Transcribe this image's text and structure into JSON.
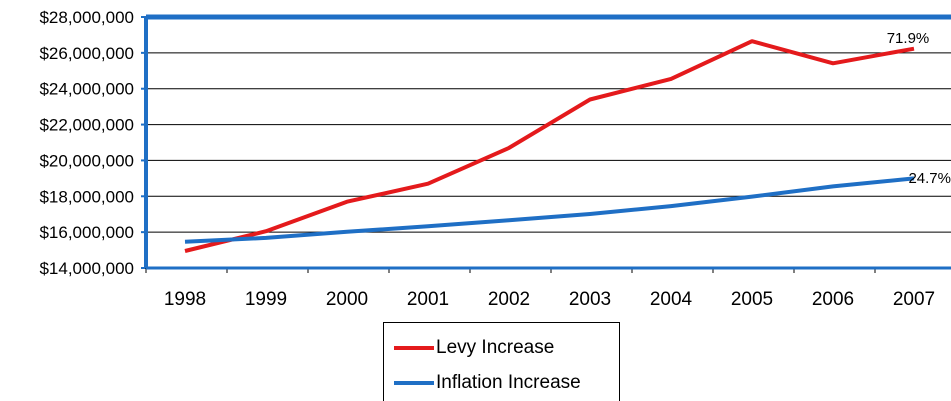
{
  "chart_data": {
    "type": "line",
    "categories": [
      "1998",
      "1999",
      "2000",
      "2001",
      "2002",
      "2003",
      "2004",
      "2005",
      "2006",
      "2007"
    ],
    "ylim": [
      14000000,
      28000000
    ],
    "yticks": [
      14000000,
      16000000,
      18000000,
      20000000,
      22000000,
      24000000,
      26000000,
      28000000
    ],
    "ytick_labels": [
      "$14,000,000",
      "$16,000,000",
      "$18,000,000",
      "$20,000,000",
      "$22,000,000",
      "$24,000,000",
      "$26,000,000",
      "$28,000,000"
    ],
    "grid": true,
    "legend_position": "bottom-center",
    "series": [
      {
        "name": "Levy Increase",
        "color": "#e41a1c",
        "values": [
          14950000,
          16050000,
          17700000,
          18700000,
          20700000,
          23400000,
          24550000,
          26650000,
          25420000,
          26230000
        ],
        "end_label": "71.9%"
      },
      {
        "name": "Inflation Increase",
        "color": "#1f6fc5",
        "values": [
          15460000,
          15680000,
          16020000,
          16330000,
          16660000,
          17010000,
          17450000,
          17980000,
          18550000,
          19000000
        ],
        "end_label": "24.7%"
      }
    ],
    "frame_color": "#1f6fc5"
  }
}
